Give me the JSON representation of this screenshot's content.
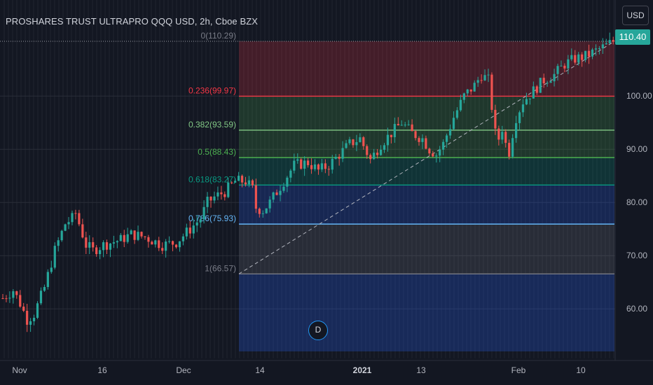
{
  "title": "PROSHARES TRUST ULTRAPRO QQQ USD, 2h, Cboe BZX",
  "currency": "USD",
  "last_price": "110.40",
  "event_marker": "D",
  "colors": {
    "background": "#131722",
    "up": "#26a69a",
    "down": "#ef5350",
    "grid": "#1e222d",
    "text": "#b2b5be"
  },
  "chart_data": {
    "type": "candlestick",
    "y_range": [
      52,
      118
    ],
    "y_ticks": [
      "60.00",
      "70.00",
      "80.00",
      "90.00",
      "100.00"
    ],
    "x_ticks": [
      "Nov",
      "16",
      "Dec",
      "14",
      "2021",
      "13",
      "Feb",
      "10"
    ],
    "fib_levels": [
      {
        "ratio": 0,
        "price": 110.29,
        "label": "0(110.29)",
        "color": "#787b86"
      },
      {
        "ratio": 0.236,
        "price": 99.97,
        "label": "0.236(99.97)",
        "color": "#f23645"
      },
      {
        "ratio": 0.382,
        "price": 93.59,
        "label": "0.382(93.59)",
        "color": "#81c784"
      },
      {
        "ratio": 0.5,
        "price": 88.43,
        "label": "0.5(88.43)",
        "color": "#4caf50"
      },
      {
        "ratio": 0.618,
        "price": 83.27,
        "label": "0.618(83.27)",
        "color": "#089981"
      },
      {
        "ratio": 0.786,
        "price": 75.93,
        "label": "0.786(75.93)",
        "color": "#64b5f6"
      },
      {
        "ratio": 1,
        "price": 66.57,
        "label": "1(66.57)",
        "color": "#787b86"
      }
    ],
    "trend_start_price": 66.57,
    "trend_end_price": 110.29,
    "price_path": [
      [
        0,
        62
      ],
      [
        3,
        63.5
      ],
      [
        5,
        61
      ],
      [
        7,
        58
      ],
      [
        9,
        59
      ],
      [
        12,
        64
      ],
      [
        15,
        71
      ],
      [
        18,
        76
      ],
      [
        20,
        77
      ],
      [
        21,
        78
      ],
      [
        22,
        76
      ],
      [
        24,
        72
      ],
      [
        26,
        71
      ],
      [
        29,
        72
      ],
      [
        34,
        73
      ],
      [
        37,
        74
      ],
      [
        41,
        73.5
      ],
      [
        46,
        72
      ],
      [
        50,
        72.5
      ],
      [
        54,
        75
      ],
      [
        57,
        77
      ],
      [
        59,
        80
      ],
      [
        61,
        81
      ],
      [
        64,
        82
      ],
      [
        67,
        84
      ],
      [
        70,
        84
      ],
      [
        72,
        82.5
      ],
      [
        73,
        79
      ],
      [
        75,
        78.5
      ],
      [
        77,
        80
      ],
      [
        80,
        83
      ],
      [
        84,
        87
      ],
      [
        88,
        87.5
      ],
      [
        91,
        86
      ],
      [
        94,
        87
      ],
      [
        97,
        89
      ],
      [
        100,
        91
      ],
      [
        103,
        92
      ],
      [
        106,
        88
      ],
      [
        109,
        91
      ],
      [
        112,
        93
      ],
      [
        115,
        95
      ],
      [
        118,
        93
      ],
      [
        121,
        92
      ],
      [
        123,
        90
      ],
      [
        125,
        89
      ],
      [
        127,
        91
      ],
      [
        130,
        96
      ],
      [
        133,
        100
      ],
      [
        136,
        102
      ],
      [
        138,
        104
      ],
      [
        140,
        103
      ],
      [
        141,
        98
      ],
      [
        142,
        93
      ],
      [
        143,
        92
      ],
      [
        144,
        94
      ],
      [
        145,
        91
      ],
      [
        146,
        89.5
      ],
      [
        147,
        93
      ],
      [
        148,
        96
      ],
      [
        150,
        99
      ],
      [
        153,
        101
      ],
      [
        156,
        103
      ],
      [
        159,
        104
      ],
      [
        162,
        106
      ],
      [
        165,
        107
      ],
      [
        168,
        107.5
      ],
      [
        171,
        108.5
      ],
      [
        174,
        109.5
      ],
      [
        176,
        110.3
      ]
    ]
  }
}
